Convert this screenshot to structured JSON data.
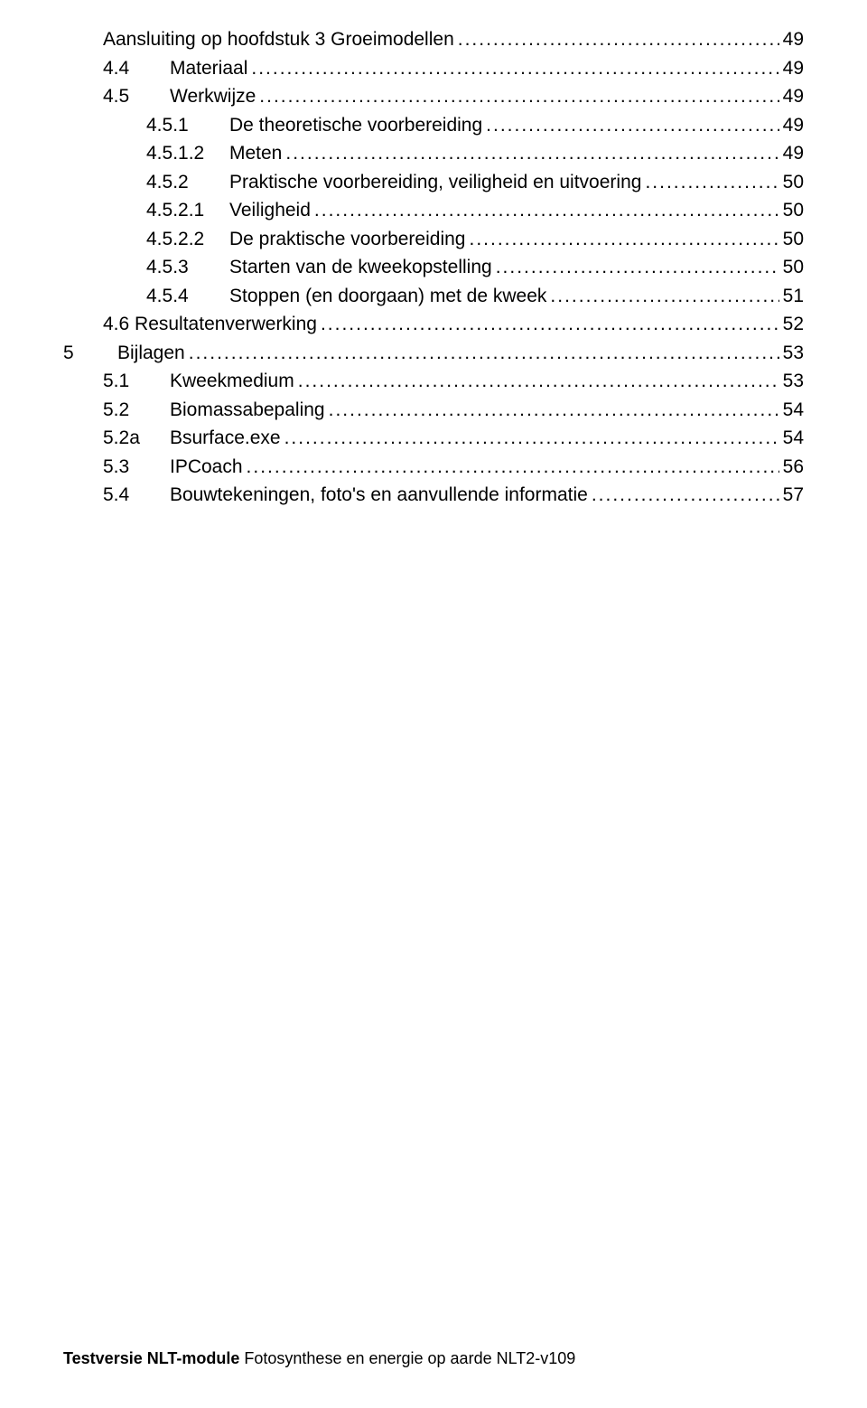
{
  "toc": {
    "font_size_pt": 16,
    "text_color": "#000000",
    "background_color": "#ffffff",
    "entries": [
      {
        "indent": 1,
        "num": "",
        "label": "Aansluiting op hoofdstuk 3 Groeimodellen",
        "page": "49"
      },
      {
        "indent": 1,
        "num": "4.4",
        "label": "Materiaal",
        "page": "49"
      },
      {
        "indent": 1,
        "num": "4.5",
        "label": "Werkwijze",
        "page": "49"
      },
      {
        "indent": 2,
        "num": "4.5.1",
        "label": "De theoretische voorbereiding",
        "page": "49"
      },
      {
        "indent": 2,
        "num": "4.5.1.2",
        "label": "Meten",
        "page": "49"
      },
      {
        "indent": 2,
        "num": "4.5.2",
        "label": "Praktische voorbereiding, veiligheid en uitvoering",
        "page": "50"
      },
      {
        "indent": 2,
        "num": "4.5.2.1",
        "label": "Veiligheid",
        "page": "50"
      },
      {
        "indent": 2,
        "num": "4.5.2.2",
        "label": "De praktische voorbereiding",
        "page": "50"
      },
      {
        "indent": 2,
        "num": "4.5.3",
        "label": "Starten van de kweekopstelling",
        "page": "50"
      },
      {
        "indent": 2,
        "num": "4.5.4",
        "label": "Stoppen (en doorgaan) met de kweek",
        "page": "51"
      },
      {
        "indent": 1,
        "num": "4.6",
        "label": "Resultatenverwerking",
        "page": "52",
        "num_attached": true
      },
      {
        "indent": 0,
        "num": "5",
        "label": "Bijlagen",
        "page": "53"
      },
      {
        "indent": 1,
        "num": "5.1",
        "label": "Kweekmedium",
        "page": "53"
      },
      {
        "indent": 1,
        "num": "5.2",
        "label": "Biomassabepaling",
        "page": "54"
      },
      {
        "indent": 1,
        "num": "5.2a",
        "label": "Bsurface.exe",
        "page": "54"
      },
      {
        "indent": 1,
        "num": "5.3",
        "label": "IPCoach",
        "page": "56"
      },
      {
        "indent": 1,
        "num": "5.4",
        "label": "Bouwtekeningen, foto's en aanvullende informatie",
        "page": "57"
      }
    ]
  },
  "footer": {
    "bold_text": "Testversie NLT-module",
    "rest_text": " Fotosynthese en energie op aarde  NLT2-v109",
    "font_size_pt": 13
  }
}
